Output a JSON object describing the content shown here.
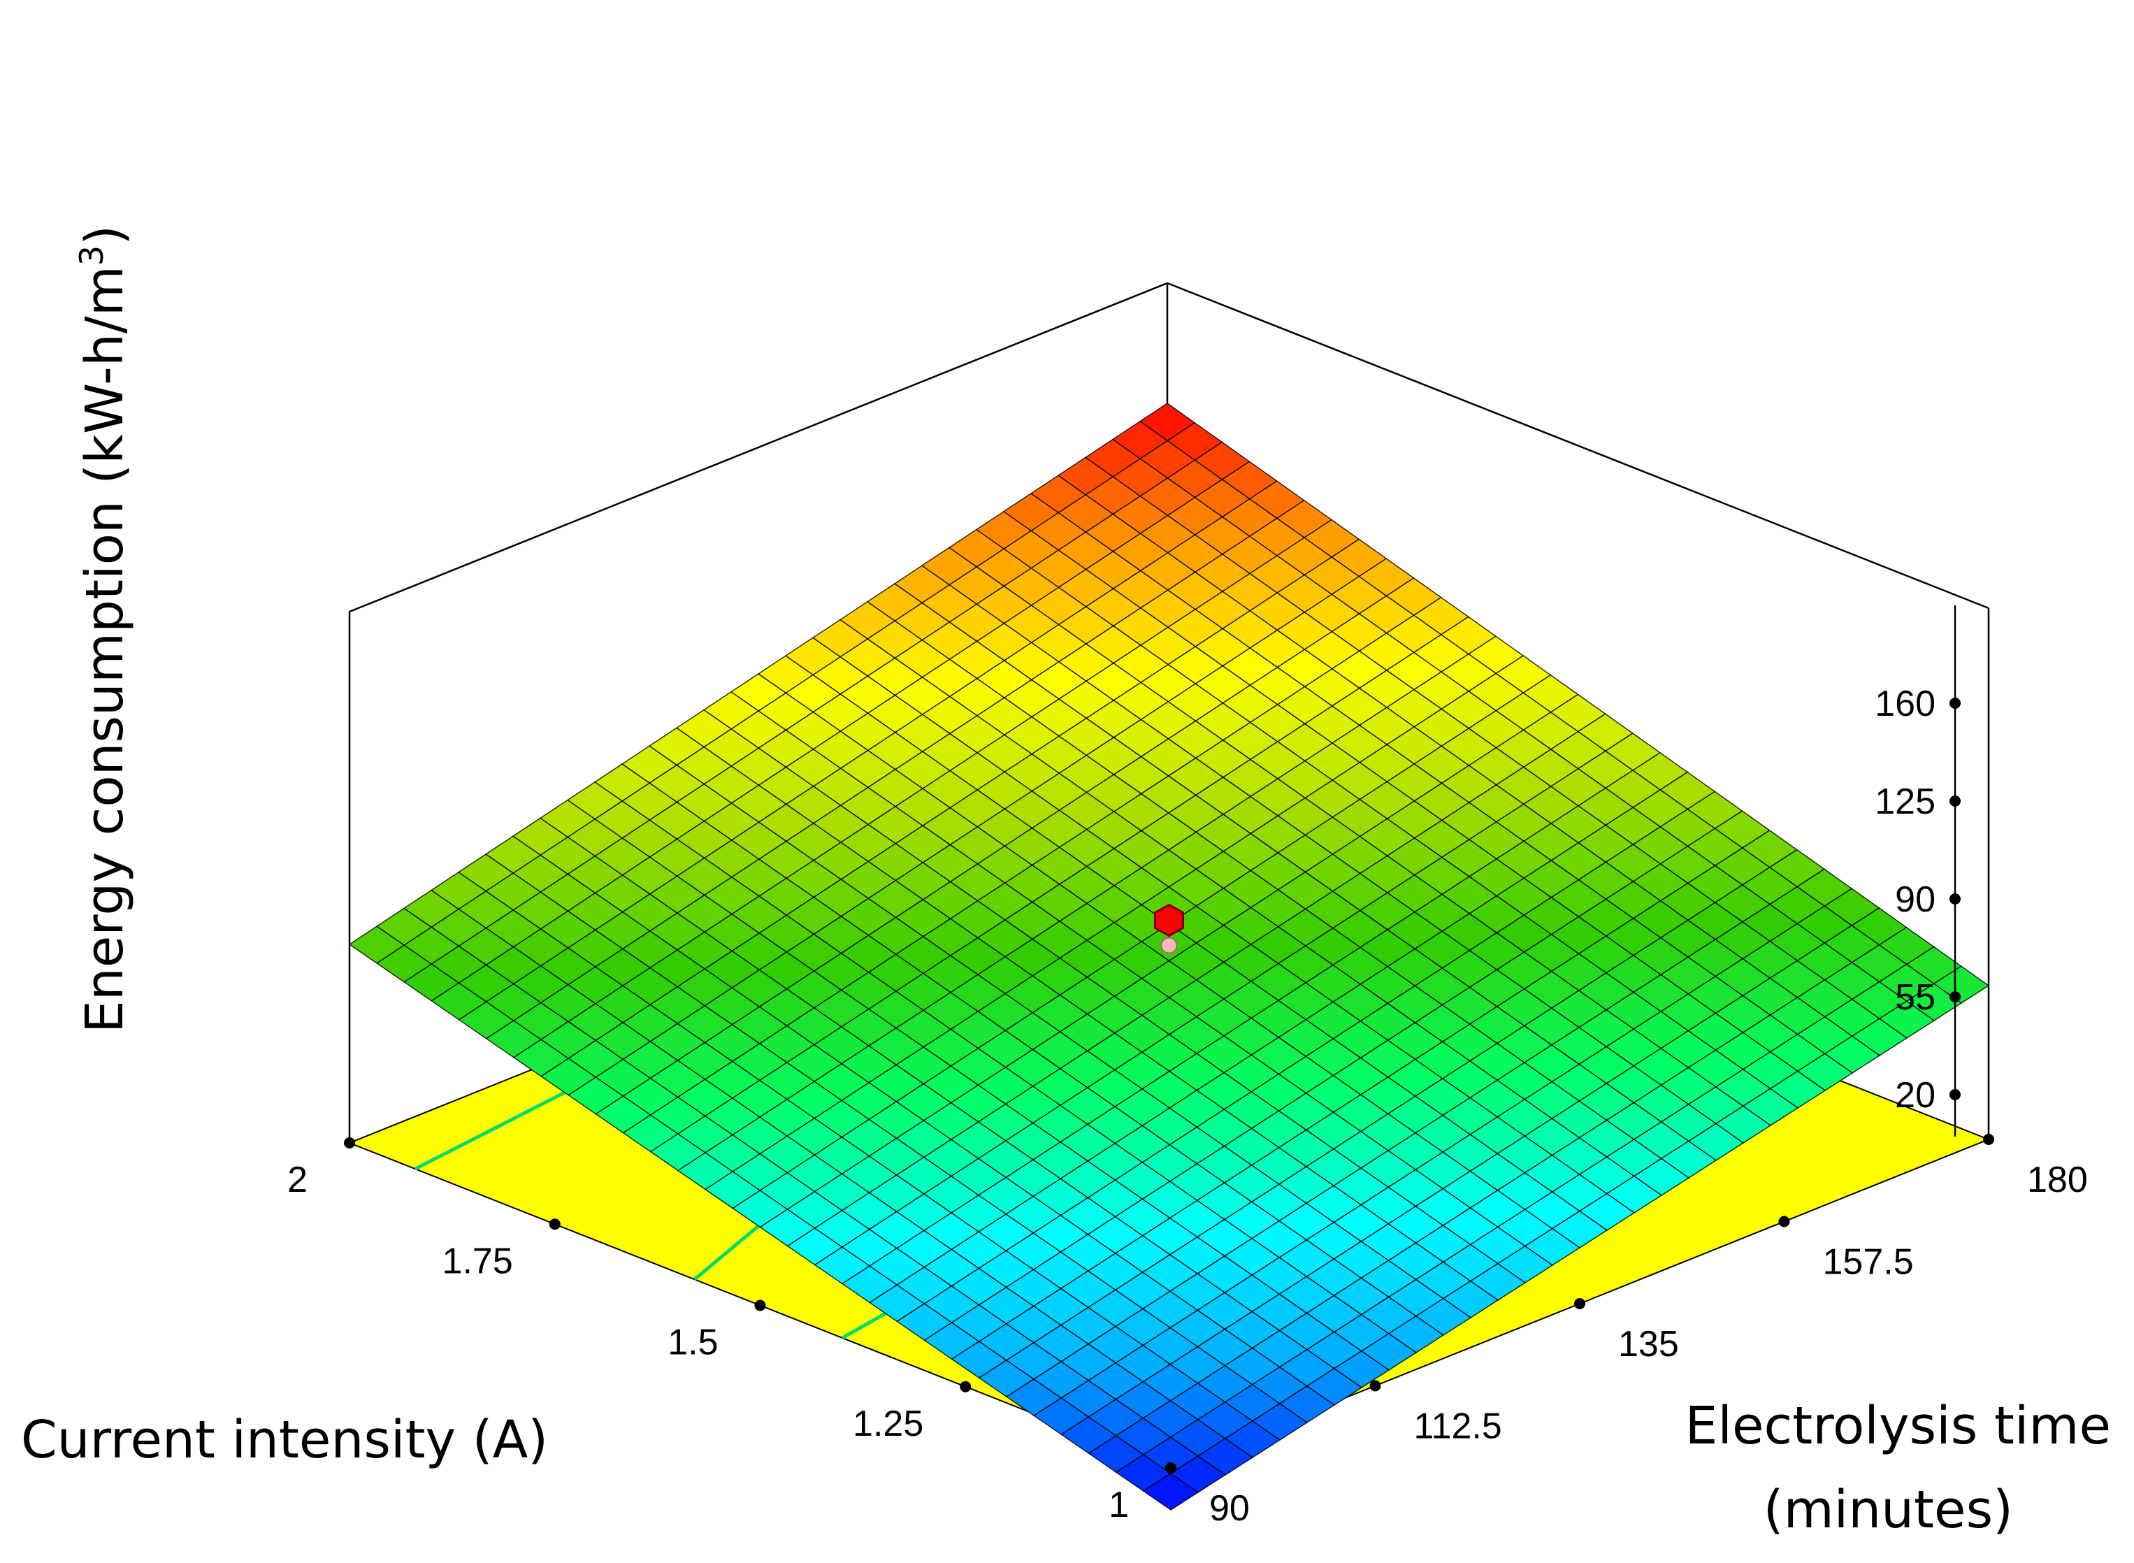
{
  "chart_data": {
    "type": "surface3d",
    "title": "",
    "x_axis": {
      "label": "Current intensity (A)",
      "min": 1,
      "max": 2,
      "ticks": [
        1,
        1.25,
        1.5,
        1.75,
        2
      ],
      "tick_labels": [
        "1",
        "1.25",
        "1.5",
        "1.75",
        "2"
      ]
    },
    "y_axis": {
      "label_line1": "Electrolysis time",
      "label_line2": "(minutes)",
      "min": 90,
      "max": 180,
      "ticks": [
        90,
        112.5,
        135,
        157.5,
        180
      ],
      "tick_labels": [
        "90",
        "112.5",
        "135",
        "157.5",
        "180"
      ]
    },
    "z_axis": {
      "label": "Energy consumption (kW-h/m",
      "label_superscript": "3",
      "label_close": ")",
      "min": -15,
      "max": 160,
      "ticks": [
        20,
        55,
        90,
        125,
        160
      ],
      "tick_labels": [
        "20",
        "55",
        "90",
        "125",
        "160"
      ]
    },
    "surface": {
      "grid_size": 31,
      "corner_values": {
        "current_1_time_90": -10,
        "current_2_time_90": 76,
        "current_1_time_180": 60,
        "current_2_time_180": 152
      },
      "colormap": [
        "#0000ff",
        "#00aaff",
        "#00ffff",
        "#00ff66",
        "#33cc00",
        "#aadd00",
        "#ffff00",
        "#ff9900",
        "#ff0000"
      ]
    },
    "floor_contour": {
      "fill_color": "#ffff00",
      "line_color": "#00dd66",
      "lines": [
        {
          "from": [
            1.92,
            90
          ],
          "to": [
            2.0,
            150
          ]
        },
        {
          "from": [
            1.58,
            90
          ],
          "to": [
            1.93,
            180
          ]
        },
        {
          "from": [
            1.4,
            90
          ],
          "to": [
            1.57,
            180
          ]
        }
      ]
    },
    "design_point": {
      "current": 1.5,
      "time": 135,
      "value": 78,
      "color": "#ff0000"
    }
  }
}
